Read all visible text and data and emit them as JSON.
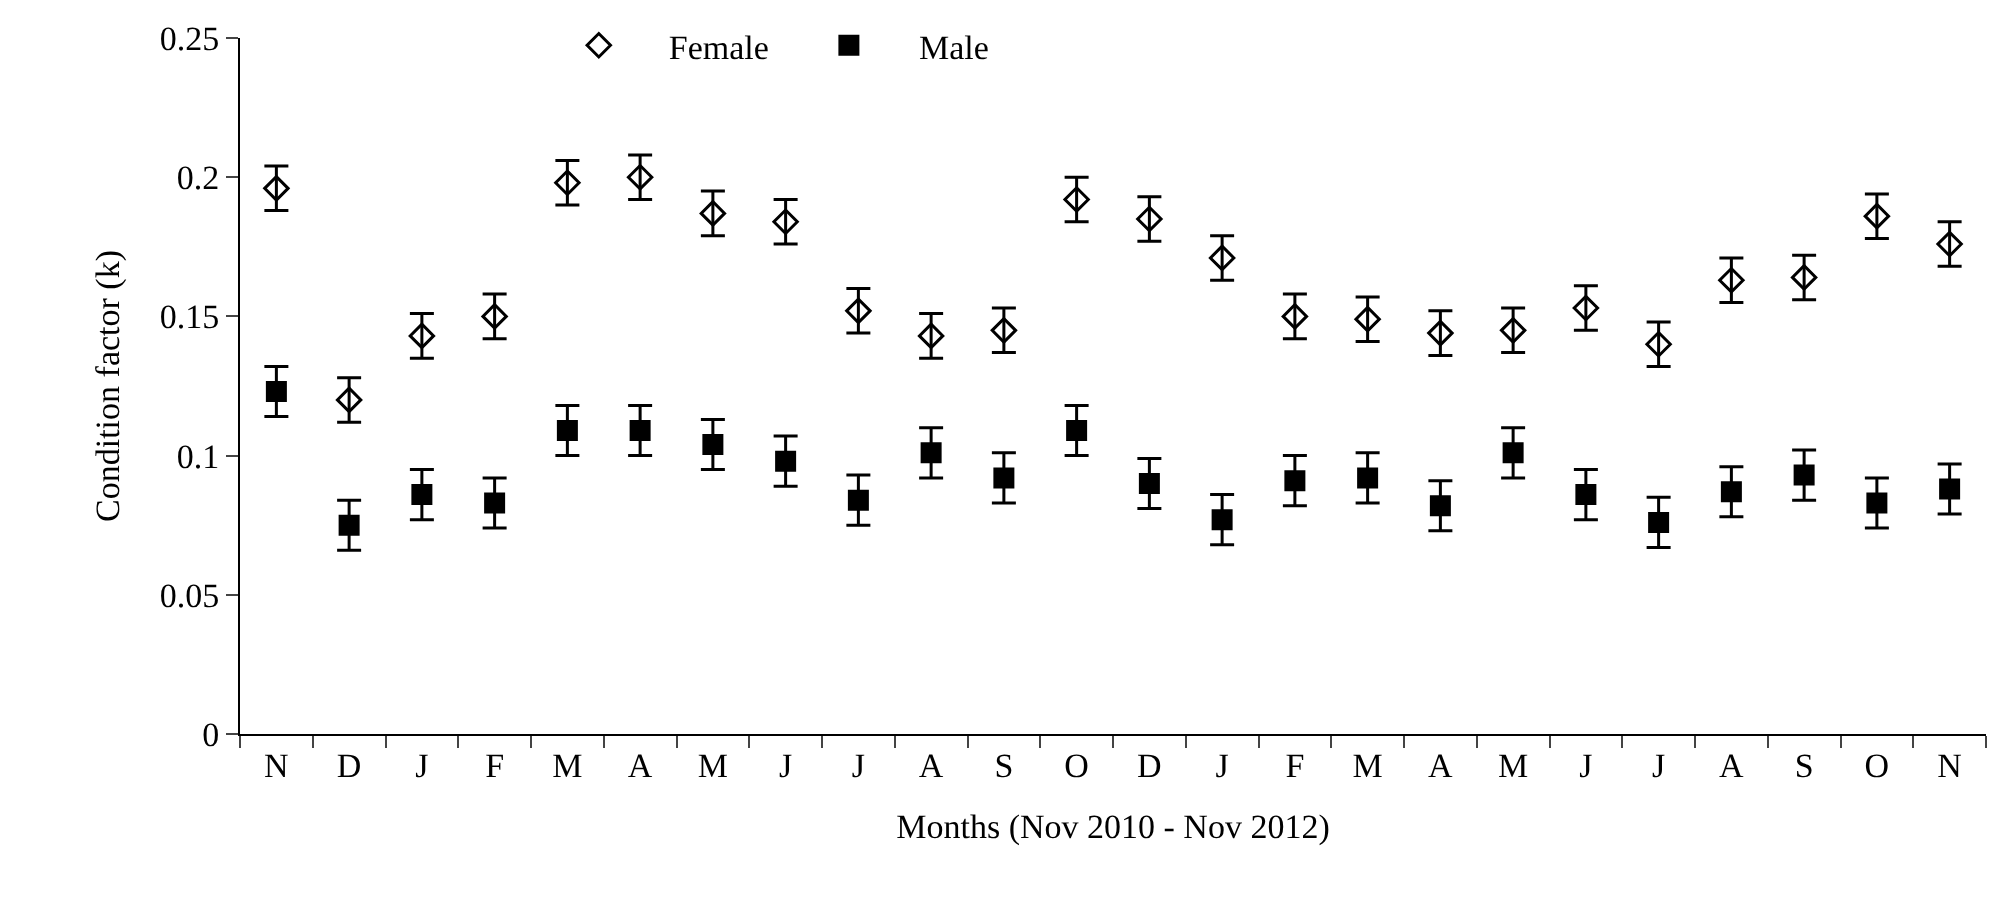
{
  "chart_data": {
    "type": "scatter",
    "xlabel": "Months (Nov 2010 - Nov 2012)",
    "ylabel": "Condition factor (k)",
    "categories": [
      "N",
      "D",
      "J",
      "F",
      "M",
      "A",
      "M",
      "J",
      "J",
      "A",
      "S",
      "O",
      "D",
      "J",
      "F",
      "M",
      "A",
      "M",
      "J",
      "J",
      "A",
      "S",
      "O",
      "N"
    ],
    "series": [
      {
        "name": "Female",
        "color": "#000000",
        "marker": "diamond",
        "values": [
          0.196,
          0.12,
          0.143,
          0.15,
          0.198,
          0.2,
          0.187,
          0.184,
          0.152,
          0.143,
          0.145,
          0.192,
          0.185,
          0.171,
          0.15,
          0.149,
          0.144,
          0.145,
          0.153,
          0.14,
          0.163,
          0.164,
          0.186,
          0.176
        ],
        "errors": [
          0.008,
          0.008,
          0.008,
          0.008,
          0.008,
          0.008,
          0.008,
          0.008,
          0.008,
          0.008,
          0.008,
          0.008,
          0.008,
          0.008,
          0.008,
          0.008,
          0.008,
          0.008,
          0.008,
          0.008,
          0.008,
          0.008,
          0.008,
          0.008
        ]
      },
      {
        "name": "Male",
        "color": "#000000",
        "marker": "square",
        "values": [
          0.123,
          0.075,
          0.086,
          0.083,
          0.109,
          0.109,
          0.104,
          0.098,
          0.084,
          0.101,
          0.092,
          0.109,
          0.09,
          0.077,
          0.091,
          0.092,
          0.082,
          0.101,
          0.086,
          0.076,
          0.087,
          0.093,
          0.083,
          0.088
        ],
        "errors": [
          0.009,
          0.009,
          0.009,
          0.009,
          0.009,
          0.009,
          0.009,
          0.009,
          0.009,
          0.009,
          0.009,
          0.009,
          0.009,
          0.009,
          0.009,
          0.009,
          0.009,
          0.009,
          0.009,
          0.009,
          0.009,
          0.009,
          0.009,
          0.009
        ]
      }
    ],
    "ylim": [
      0,
      0.25
    ],
    "yticks": [
      0,
      0.05,
      0.1,
      0.15,
      0.2,
      0.25
    ],
    "legend": "top"
  }
}
